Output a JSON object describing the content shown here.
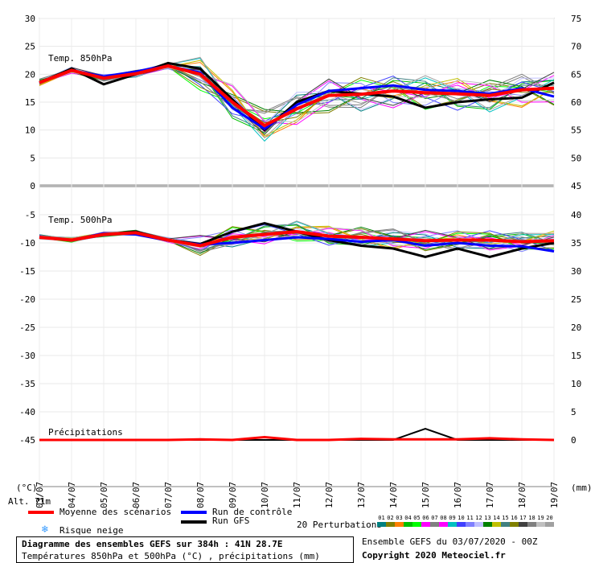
{
  "colors": {
    "mean": "#ff0000",
    "control": "#0000ff",
    "gfs": "#000000",
    "axis": "#808080",
    "grid": "#e0e0e0"
  },
  "chart_data": [
    {
      "type": "line",
      "title": "Temp. 850hPa",
      "xlabel": "",
      "ylabel": "(°C)",
      "x": [
        "03/07",
        "04/07",
        "05/07",
        "06/07",
        "07/07",
        "08/07",
        "09/07",
        "10/07",
        "11/07",
        "12/07",
        "13/07",
        "14/07",
        "15/07",
        "16/07",
        "17/07",
        "18/07",
        "19/07"
      ],
      "ylim": [
        0,
        30
      ],
      "yticks": [
        0,
        5,
        10,
        15,
        20,
        25,
        30
      ],
      "right_yticks": [
        45,
        50,
        55,
        60,
        65,
        70,
        75
      ],
      "series": [
        {
          "name": "Moyenne des scénarios",
          "values": [
            18.5,
            20.7,
            19.3,
            20.1,
            21.5,
            20.0,
            15.0,
            10.8,
            13.8,
            16.2,
            16.4,
            17.0,
            16.7,
            16.5,
            16.2,
            17.2,
            17.5
          ]
        },
        {
          "name": "Run de contrôle",
          "values": [
            18.5,
            20.7,
            19.6,
            20.5,
            21.5,
            20.3,
            14.0,
            10.2,
            14.5,
            17.0,
            17.5,
            18.0,
            17.2,
            17.0,
            16.5,
            17.5,
            16.0
          ]
        },
        {
          "name": "Run GFS",
          "values": [
            18.5,
            21.0,
            18.2,
            20.0,
            22.0,
            21.0,
            15.5,
            10.0,
            15.0,
            17.0,
            16.5,
            16.0,
            14.0,
            15.0,
            15.5,
            15.8,
            18.5
          ]
        }
      ]
    },
    {
      "type": "line",
      "title": "Temp. 500hPa",
      "xlabel": "",
      "ylabel": "(°C)",
      "x": [
        "03/07",
        "04/07",
        "05/07",
        "06/07",
        "07/07",
        "08/07",
        "09/07",
        "10/07",
        "11/07",
        "12/07",
        "13/07",
        "14/07",
        "15/07",
        "16/07",
        "17/07",
        "18/07",
        "19/07"
      ],
      "ylim": [
        -45,
        -5
      ],
      "yticks": [
        -5,
        -10,
        -15,
        -20,
        -25,
        -30,
        -35,
        -40,
        -45
      ],
      "right_yticks": [
        40,
        35,
        30,
        25,
        20,
        15,
        10,
        5,
        0
      ],
      "series": [
        {
          "name": "Moyenne des scénarios",
          "values": [
            -9.0,
            -9.5,
            -8.5,
            -8.2,
            -9.5,
            -10.5,
            -9.0,
            -8.5,
            -8.0,
            -8.8,
            -9.0,
            -9.3,
            -9.6,
            -9.5,
            -9.5,
            -9.8,
            -9.6
          ]
        },
        {
          "name": "Run de contrôle",
          "values": [
            -9.0,
            -9.5,
            -8.3,
            -8.5,
            -9.6,
            -10.3,
            -10.0,
            -9.5,
            -9.0,
            -9.3,
            -9.8,
            -9.5,
            -10.5,
            -10.0,
            -10.5,
            -10.6,
            -11.5
          ]
        },
        {
          "name": "Run GFS",
          "values": [
            -9.0,
            -9.5,
            -8.5,
            -8.0,
            -9.5,
            -10.2,
            -8.0,
            -6.5,
            -8.0,
            -9.5,
            -10.5,
            -11.0,
            -12.5,
            -11.0,
            -12.5,
            -11.0,
            -10.0
          ]
        }
      ]
    },
    {
      "type": "line",
      "title": "Précipitations",
      "xlabel": "",
      "ylabel": "(mm)",
      "x": [
        "03/07",
        "04/07",
        "05/07",
        "06/07",
        "07/07",
        "08/07",
        "09/07",
        "10/07",
        "11/07",
        "12/07",
        "13/07",
        "14/07",
        "15/07",
        "16/07",
        "17/07",
        "18/07",
        "19/07"
      ],
      "ylim": [
        0,
        10
      ],
      "yticks": [
        0,
        5,
        10
      ],
      "series": [
        {
          "name": "Moyenne des scénarios",
          "values": [
            0,
            0,
            0,
            0,
            0,
            0.1,
            0,
            0.5,
            0,
            0,
            0.2,
            0.1,
            0.1,
            0.1,
            0.3,
            0.1,
            0
          ]
        },
        {
          "name": "Run GFS",
          "values": [
            0,
            0,
            0,
            0,
            0,
            0,
            0,
            0,
            0,
            0,
            0,
            0,
            2.0,
            0,
            0,
            0,
            0
          ]
        }
      ]
    }
  ],
  "legend": {
    "mean": "Moyenne des scénarios",
    "control": "Run de contrôle",
    "gfs": "Run GFS",
    "snow": "Risque neige",
    "perturbations": "20 Perturbations",
    "pert_numbers": [
      "01",
      "02",
      "03",
      "04",
      "05",
      "06",
      "07",
      "08",
      "09",
      "10",
      "11",
      "12",
      "13",
      "14",
      "15",
      "16",
      "17",
      "18",
      "19",
      "20"
    ],
    "pert_colors": [
      "#008080",
      "#808000",
      "#ff8000",
      "#00c000",
      "#00ff00",
      "#ff00ff",
      "#808080",
      "#ff00ff",
      "#00c0c0",
      "#4040ff",
      "#8080ff",
      "#c0c0ff",
      "#008000",
      "#c0c000",
      "#408080",
      "#808000",
      "#404040",
      "#808080",
      "#c0c0c0",
      "#a0a0a0"
    ]
  },
  "labels": {
    "unit_left": "(°C)",
    "unit_right": "(mm)",
    "altitude": "Alt. 71m"
  },
  "footer": {
    "title": "Diagramme des ensembles GEFS sur 384h : 41N 28.7E",
    "subtitle": "Températures 850hPa et 500hPa (°C) , précipitations (mm)",
    "run_info": "Ensemble GEFS du 03/07/2020 - 00Z",
    "copyright": "Copyright 2020 Meteociel.fr"
  }
}
